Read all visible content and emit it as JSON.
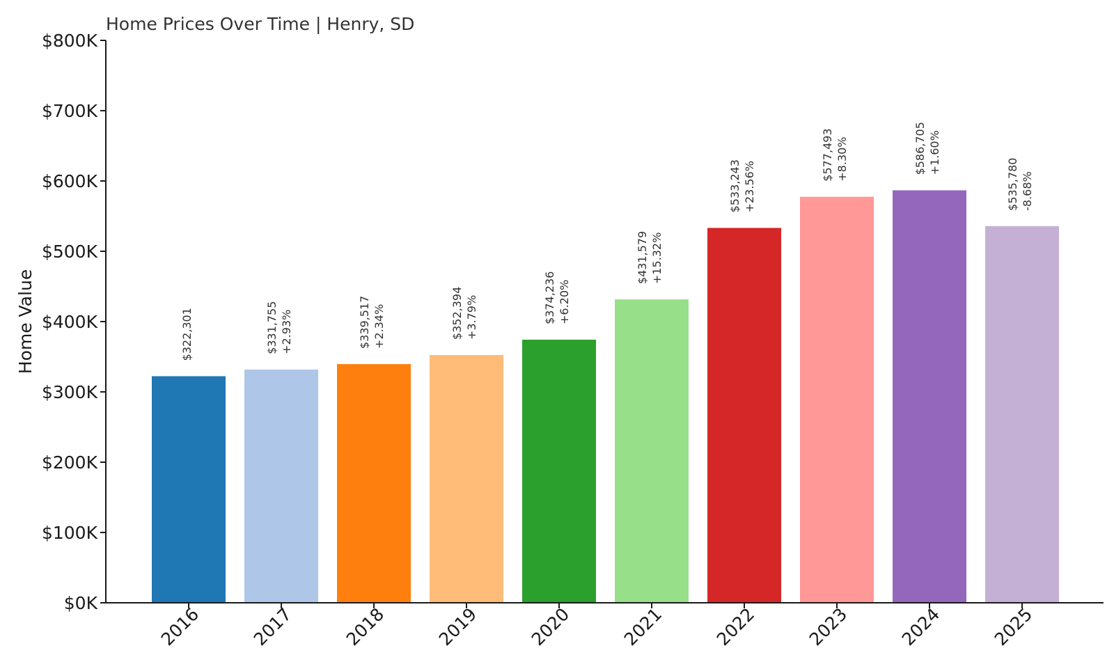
{
  "chart_data": {
    "type": "bar",
    "title": "Home Prices Over Time | Henry, SD",
    "xlabel": "",
    "ylabel": "Home Value",
    "ylim": [
      0,
      800000
    ],
    "y_ticks": [
      {
        "value": 0,
        "label": "$0K"
      },
      {
        "value": 100000,
        "label": "$100K"
      },
      {
        "value": 200000,
        "label": "$200K"
      },
      {
        "value": 300000,
        "label": "$300K"
      },
      {
        "value": 400000,
        "label": "$400K"
      },
      {
        "value": 500000,
        "label": "$500K"
      },
      {
        "value": 600000,
        "label": "$600K"
      },
      {
        "value": 700000,
        "label": "$700K"
      },
      {
        "value": 800000,
        "label": "$800K"
      }
    ],
    "grid": false,
    "legend": "none",
    "categories": [
      "2016",
      "2017",
      "2018",
      "2019",
      "2020",
      "2021",
      "2022",
      "2023",
      "2024",
      "2025"
    ],
    "values": [
      322301,
      331755,
      339517,
      352394,
      374236,
      431579,
      533243,
      577493,
      586705,
      535780
    ],
    "value_labels": [
      "$322,301",
      "$331,755",
      "$339,517",
      "$352,394",
      "$374,236",
      "$431,579",
      "$533,243",
      "$577,493",
      "$586,705",
      "$535,780"
    ],
    "change_labels": [
      "",
      "+2.93%",
      "+2.34%",
      "+3.79%",
      "+6.20%",
      "+15.32%",
      "+23.56%",
      "+8.30%",
      "+1.60%",
      "-8.68%"
    ],
    "colors": [
      "#1f77b4",
      "#aec7e8",
      "#ff7f0e",
      "#ffbb78",
      "#2ca02c",
      "#98df8a",
      "#d62728",
      "#ff9896",
      "#9467bd",
      "#c5b0d5"
    ]
  }
}
